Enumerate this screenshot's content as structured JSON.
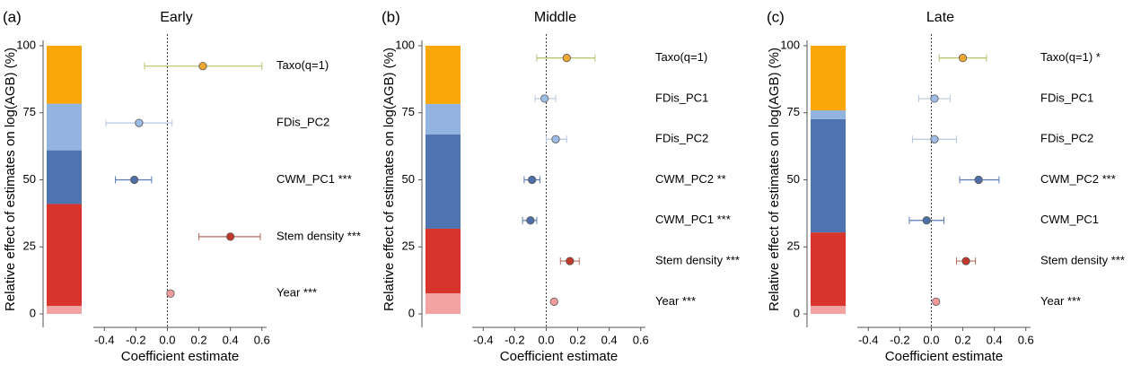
{
  "chart_data": [
    {
      "type": "forest",
      "panel_label": "(a)",
      "title": "Early",
      "ylabel": "Relative effect of estimates on log(AGB) (%)",
      "xlabel": "Coefficient estimate",
      "ylim": [
        -5,
        102
      ],
      "yticks": [
        0,
        25,
        50,
        75,
        100
      ],
      "xlim": [
        -0.47,
        0.63
      ],
      "xticks": [
        -0.4,
        -0.2,
        {
          "value": 0,
          "label": "0.0"
        },
        0.2,
        0.4,
        0.6
      ],
      "shares": [
        {
          "color": "#f4a3a3",
          "value": 3
        },
        {
          "color": "#d9342b",
          "value": 38
        },
        {
          "color": "#4e73b0",
          "value": 20
        },
        {
          "color": "#93b3e0",
          "value": 17.4
        },
        {
          "color": "#fba70a",
          "value": 21.6
        }
      ],
      "rows": [
        {
          "label": "Taxo(q=1)",
          "value": 0.225,
          "ci": [
            -0.145,
            0.6
          ],
          "color": "#f0a830",
          "ci_color": "#b8bf6a"
        },
        {
          "label": "FDis_PC2",
          "value": -0.18,
          "ci": [
            -0.39,
            0.03
          ],
          "color": "#9dbce6",
          "ci_color": "#b7c7df"
        },
        {
          "label": "CWM_PC1 ***",
          "value": -0.21,
          "ci": [
            -0.33,
            -0.1
          ],
          "color": "#4e6fa8",
          "ci_color": "#5a7bb5"
        },
        {
          "label": "Stem density ***",
          "value": 0.4,
          "ci": [
            0.2,
            0.59
          ],
          "color": "#c0392b",
          "ci_color": "#b96a5a"
        },
        {
          "label": "Year ***",
          "value": 0.02,
          "ci": [
            0.01,
            0.03
          ],
          "color": "#f29b9b",
          "ci_color": "#e8a0a0"
        }
      ]
    },
    {
      "type": "forest",
      "panel_label": "(b)",
      "title": "Middle",
      "ylabel": "Relative effect of estimates on log(AGB) (%)",
      "xlabel": "Coefficient estimate",
      "ylim": [
        -5,
        102
      ],
      "yticks": [
        0,
        25,
        50,
        75,
        100
      ],
      "xlim": [
        -0.47,
        0.63
      ],
      "xticks": [
        -0.4,
        -0.2,
        {
          "value": 0,
          "label": "0.0"
        },
        0.2,
        0.4,
        0.6
      ],
      "shares": [
        {
          "color": "#f4a3a3",
          "value": 7.7
        },
        {
          "color": "#d9342b",
          "value": 24.1
        },
        {
          "color": "#4e73b0",
          "value": 35.1
        },
        {
          "color": "#93b3e0",
          "value": 11.4
        },
        {
          "color": "#fba70a",
          "value": 21.7
        }
      ],
      "rows": [
        {
          "label": "Taxo(q=1)",
          "value": 0.13,
          "ci": [
            -0.06,
            0.31
          ],
          "color": "#f0a830",
          "ci_color": "#b8bf6a"
        },
        {
          "label": "FDis_PC1",
          "value": -0.01,
          "ci": [
            -0.07,
            0.06
          ],
          "color": "#9dbce6",
          "ci_color": "#b7c7df"
        },
        {
          "label": "FDis_PC2",
          "value": 0.06,
          "ci": [
            0.0,
            0.13
          ],
          "color": "#9dbce6",
          "ci_color": "#b7c7df"
        },
        {
          "label": "CWM_PC2 **",
          "value": -0.09,
          "ci": [
            -0.14,
            -0.04
          ],
          "color": "#4e6fa8",
          "ci_color": "#5a7bb5"
        },
        {
          "label": "CWM_PC1 ***",
          "value": -0.1,
          "ci": [
            -0.15,
            -0.06
          ],
          "color": "#4e6fa8",
          "ci_color": "#5a7bb5"
        },
        {
          "label": "Stem density ***",
          "value": 0.15,
          "ci": [
            0.09,
            0.21
          ],
          "color": "#c0392b",
          "ci_color": "#b96a5a"
        },
        {
          "label": "Year ***",
          "value": 0.05,
          "ci": [
            0.04,
            0.06
          ],
          "color": "#f29b9b",
          "ci_color": "#e8a0a0"
        }
      ]
    },
    {
      "type": "forest",
      "panel_label": "(c)",
      "title": "Late",
      "ylabel": "Relative effect of estimates on log(AGB) (%)",
      "xlabel": "Coefficient estimate",
      "ylim": [
        -5,
        102
      ],
      "yticks": [
        0,
        25,
        50,
        75,
        100
      ],
      "xlim": [
        -0.47,
        0.63
      ],
      "xticks": [
        -0.4,
        -0.2,
        {
          "value": 0,
          "label": "0.0"
        },
        0.2,
        0.4,
        0.6
      ],
      "shares": [
        {
          "color": "#f4a3a3",
          "value": 3
        },
        {
          "color": "#d9342b",
          "value": 27.4
        },
        {
          "color": "#4e73b0",
          "value": 42.2
        },
        {
          "color": "#93b3e0",
          "value": 3.3
        },
        {
          "color": "#fba70a",
          "value": 24.1
        }
      ],
      "rows": [
        {
          "label": "Taxo(q=1) *",
          "value": 0.2,
          "ci": [
            0.05,
            0.35
          ],
          "color": "#f0a830",
          "ci_color": "#b8bf6a"
        },
        {
          "label": "FDis_PC1",
          "value": 0.02,
          "ci": [
            -0.08,
            0.12
          ],
          "color": "#9dbce6",
          "ci_color": "#b7c7df"
        },
        {
          "label": "FDis_PC2",
          "value": 0.02,
          "ci": [
            -0.12,
            0.16
          ],
          "color": "#9dbce6",
          "ci_color": "#b7c7df"
        },
        {
          "label": "CWM_PC2 ***",
          "value": 0.3,
          "ci": [
            0.18,
            0.43
          ],
          "color": "#4e6fa8",
          "ci_color": "#5a7bb5"
        },
        {
          "label": "CWM_PC1",
          "value": -0.03,
          "ci": [
            -0.14,
            0.08
          ],
          "color": "#4e6fa8",
          "ci_color": "#5a7bb5"
        },
        {
          "label": "Stem density ***",
          "value": 0.22,
          "ci": [
            0.16,
            0.28
          ],
          "color": "#c0392b",
          "ci_color": "#b96a5a"
        },
        {
          "label": "Year ***",
          "value": 0.03,
          "ci": [
            0.02,
            0.04
          ],
          "color": "#f29b9b",
          "ci_color": "#e8a0a0"
        }
      ]
    }
  ]
}
